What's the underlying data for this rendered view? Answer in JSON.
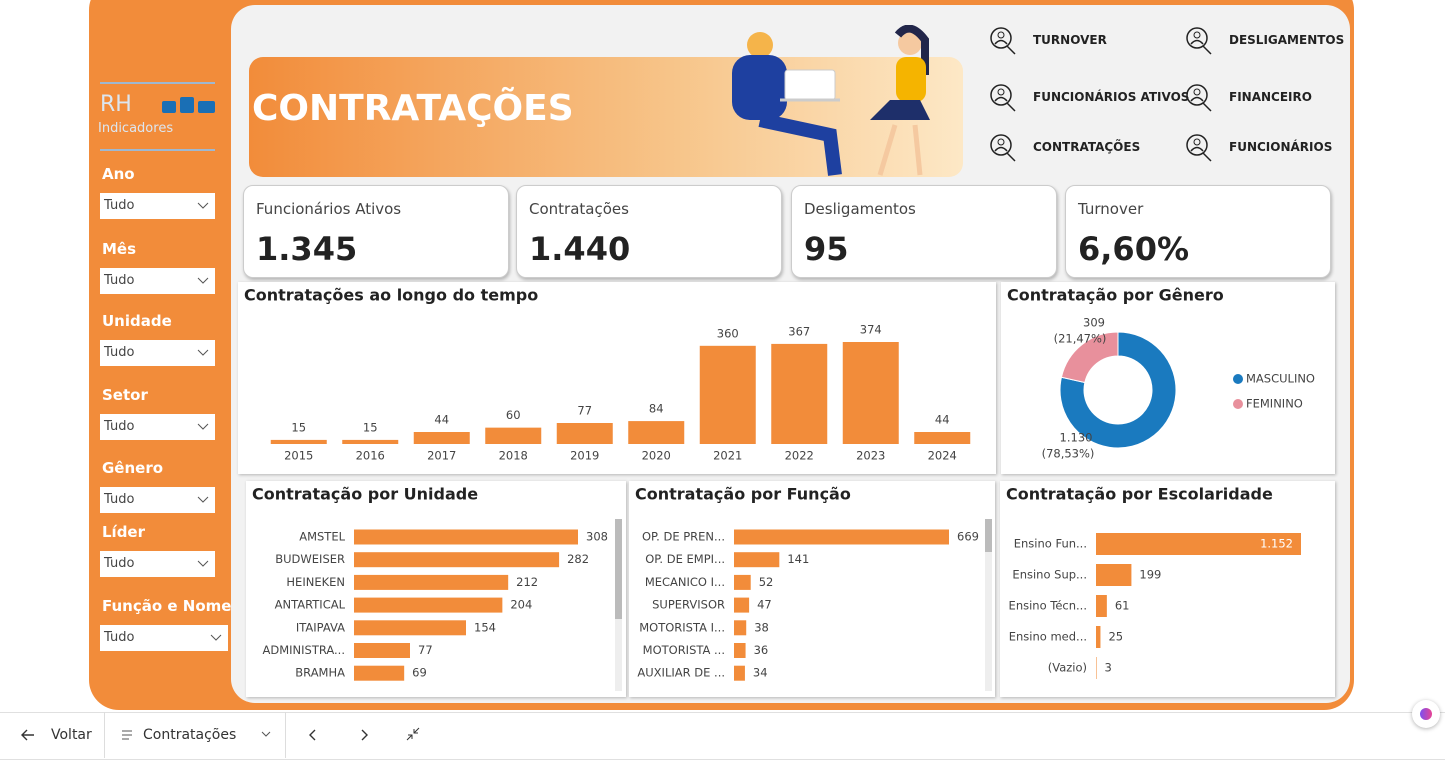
{
  "sidebar": {
    "logo_title": "RH",
    "logo_subtitle": "Indicadores",
    "filters": [
      {
        "label": "Ano",
        "value": "Tudo"
      },
      {
        "label": "Mês",
        "value": "Tudo"
      },
      {
        "label": "Unidade",
        "value": "Tudo"
      },
      {
        "label": "Setor",
        "value": "Tudo"
      },
      {
        "label": "Gênero",
        "value": "Tudo"
      },
      {
        "label": "Líder",
        "value": "Tudo"
      },
      {
        "label": "Função e Nome",
        "value": "Tudo"
      }
    ]
  },
  "header": {
    "title": "CONTRATAÇÕES"
  },
  "nav": [
    "TURNOVER",
    "DESLIGAMENTOS",
    "FUNCIONÁRIOS ATIVOS",
    "FINANCEIRO",
    "CONTRATAÇÕES",
    "FUNCIONÁRIOS"
  ],
  "kpis": [
    {
      "label": "Funcionários Ativos",
      "value": "1.345"
    },
    {
      "label": "Contratações",
      "value": "1.440"
    },
    {
      "label": "Desligamentos",
      "value": "95"
    },
    {
      "label": "Turnover",
      "value": "6,60%"
    }
  ],
  "chart_data": [
    {
      "type": "bar",
      "title": "Contratações ao longo do tempo",
      "categories": [
        "2015",
        "2016",
        "2017",
        "2018",
        "2019",
        "2020",
        "2021",
        "2022",
        "2023",
        "2024"
      ],
      "values": [
        15,
        15,
        44,
        60,
        77,
        84,
        360,
        367,
        374,
        44
      ],
      "color": "#f28c3a"
    },
    {
      "type": "pie",
      "title": "Contratação por Gênero",
      "categories": [
        "MASCULINO",
        "FEMININO"
      ],
      "values": [
        1130,
        309
      ],
      "value_labels": [
        "1.130",
        "309"
      ],
      "percentage_labels": [
        "(78,53%)",
        "(21,47%)"
      ],
      "colors": [
        "#1a7abf",
        "#e8909c"
      ]
    },
    {
      "type": "hbar",
      "title": "Contratação por Unidade",
      "categories": [
        "AMSTEL",
        "BUDWEISER",
        "HEINEKEN",
        "ANTARTICAL",
        "ITAIPAVA",
        "ADMINISTRA...",
        "BRAMHA"
      ],
      "values": [
        308,
        282,
        212,
        204,
        154,
        77,
        69
      ],
      "color": "#f28c3a"
    },
    {
      "type": "hbar",
      "title": "Contratação por Função",
      "categories": [
        "OP. DE PREN...",
        "OP. DE EMPI...",
        "MECANICO I...",
        "SUPERVISOR",
        "MOTORISTA I...",
        "MOTORISTA ...",
        "AUXILIAR DE ..."
      ],
      "values": [
        669,
        141,
        52,
        47,
        38,
        36,
        34
      ],
      "color": "#f28c3a"
    },
    {
      "type": "hbar",
      "title": "Contratação por Escolaridade",
      "categories": [
        "Ensino Fun...",
        "Ensino Sup...",
        "Ensino Técn...",
        "Ensino med...",
        "(Vazio)"
      ],
      "values": [
        1152,
        199,
        61,
        25,
        3
      ],
      "value_labels": [
        "1.152",
        "199",
        "61",
        "25",
        "3"
      ],
      "color": "#f28c3a"
    }
  ],
  "footer": {
    "back": "Voltar",
    "page": "Contratações"
  }
}
